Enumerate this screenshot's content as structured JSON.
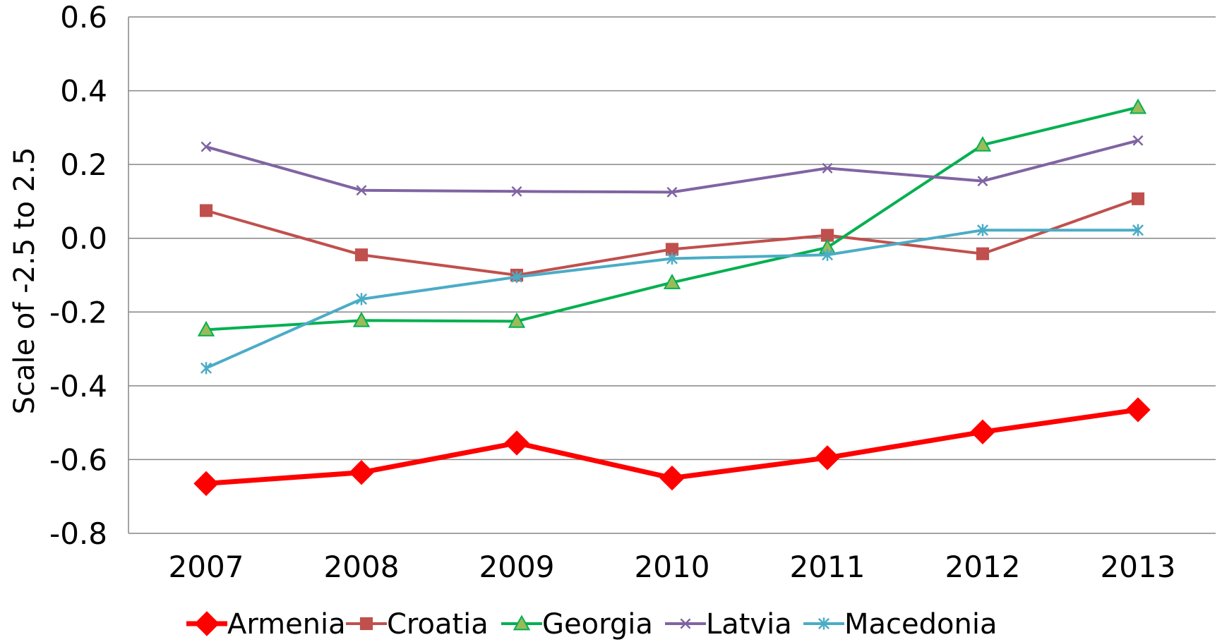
{
  "chart_data": {
    "type": "line",
    "ylabel": "Scale of -2.5 to 2.5",
    "ylim": [
      -0.8,
      0.6
    ],
    "yticks": [
      "0.6",
      "0.4",
      "0.2",
      "0.0",
      "-0.2",
      "-0.4",
      "-0.6",
      "-0.8"
    ],
    "categories": [
      "2007",
      "2008",
      "2009",
      "2010",
      "2011",
      "2012",
      "2013"
    ],
    "grid": "horizontal",
    "legend_position": "bottom",
    "series": [
      {
        "name": "Armenia",
        "color": "#ff0000",
        "marker": "diamond",
        "values": [
          -0.665,
          -0.635,
          -0.555,
          -0.65,
          -0.595,
          -0.525,
          -0.465
        ]
      },
      {
        "name": "Croatia",
        "color": "#c0504d",
        "marker": "square",
        "values": [
          0.075,
          -0.045,
          -0.1,
          -0.03,
          0.008,
          -0.042,
          0.107
        ]
      },
      {
        "name": "Georgia",
        "color": "#00b050",
        "marker": "triangle",
        "values": [
          -0.248,
          -0.223,
          -0.225,
          -0.12,
          -0.025,
          0.253,
          0.355
        ]
      },
      {
        "name": "Latvia",
        "color": "#8064a2",
        "marker": "x",
        "values": [
          0.248,
          0.13,
          0.127,
          0.125,
          0.19,
          0.155,
          0.265
        ]
      },
      {
        "name": "Macedonia",
        "color": "#4bacc6",
        "marker": "star",
        "values": [
          -0.352,
          -0.165,
          -0.105,
          -0.055,
          -0.045,
          0.022,
          0.022
        ]
      }
    ]
  }
}
